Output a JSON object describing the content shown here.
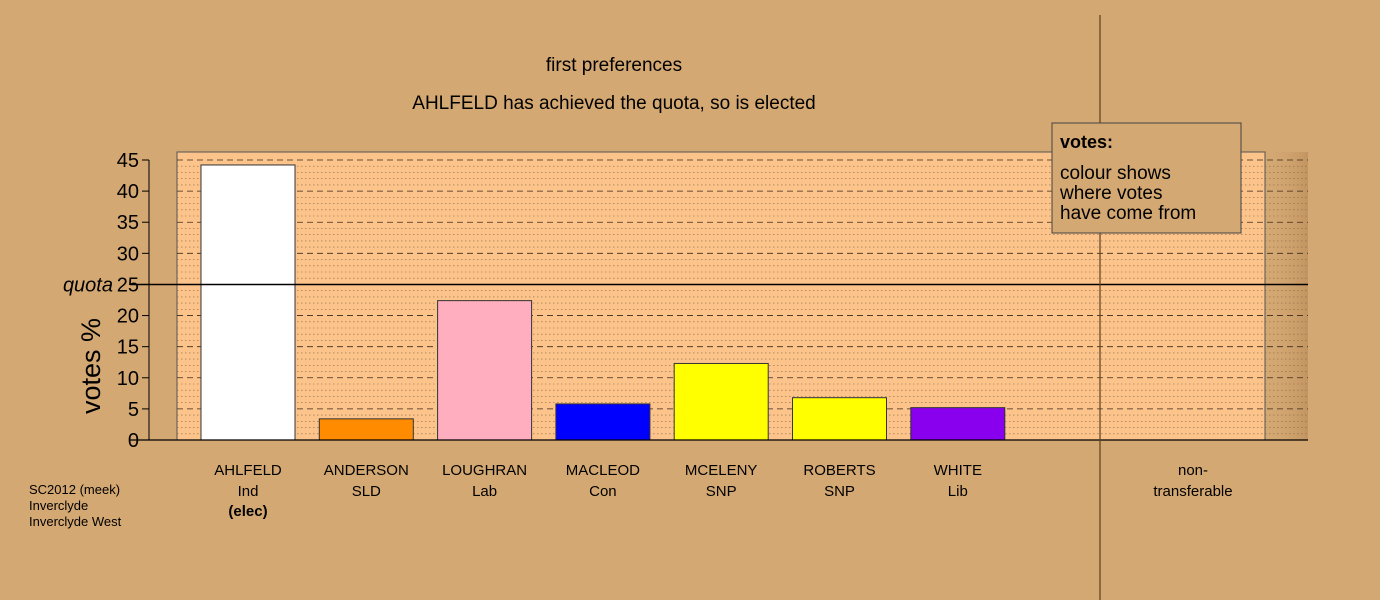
{
  "chart_data": {
    "type": "bar",
    "title": "first preferences",
    "subtitle": "AHLFELD has achieved the quota, so is elected",
    "ylabel": "votes %",
    "ylim": [
      0,
      45
    ],
    "yticks": [
      0,
      5,
      10,
      15,
      20,
      25,
      30,
      35,
      40,
      45
    ],
    "quota": 25,
    "quota_label": "quota",
    "grid": true,
    "categories": [
      {
        "name": "AHLFELD",
        "party": "Ind",
        "note": "(elec)",
        "value": 44.2,
        "color": "#ffffff"
      },
      {
        "name": "ANDERSON",
        "party": "SLD",
        "note": "",
        "value": 3.4,
        "color": "#ff8c00"
      },
      {
        "name": "LOUGHRAN",
        "party": "Lab",
        "note": "",
        "value": 22.4,
        "color": "#ffaec0"
      },
      {
        "name": "MACLEOD",
        "party": "Con",
        "note": "",
        "value": 5.8,
        "color": "#0000ff"
      },
      {
        "name": "MCELENY",
        "party": "SNP",
        "note": "",
        "value": 12.3,
        "color": "#ffff00"
      },
      {
        "name": "ROBERTS",
        "party": "SNP",
        "note": "",
        "value": 6.8,
        "color": "#ffff00"
      },
      {
        "name": "WHITE",
        "party": "Lib",
        "note": "",
        "value": 5.2,
        "color": "#8800ee"
      }
    ],
    "nontransferable": {
      "label_1": "non-",
      "label_2": "transferable",
      "value": 0
    }
  },
  "legend": {
    "heading": "votes:",
    "line_1": "colour shows",
    "line_2": "where votes",
    "line_3": "have come from"
  },
  "footer": {
    "line_1": "SC2012 (meek)",
    "line_2": "Inverclyde",
    "line_3": "Inverclyde West"
  },
  "colors": {
    "background": "#d4a872",
    "plot_area": "#fcc38a"
  }
}
